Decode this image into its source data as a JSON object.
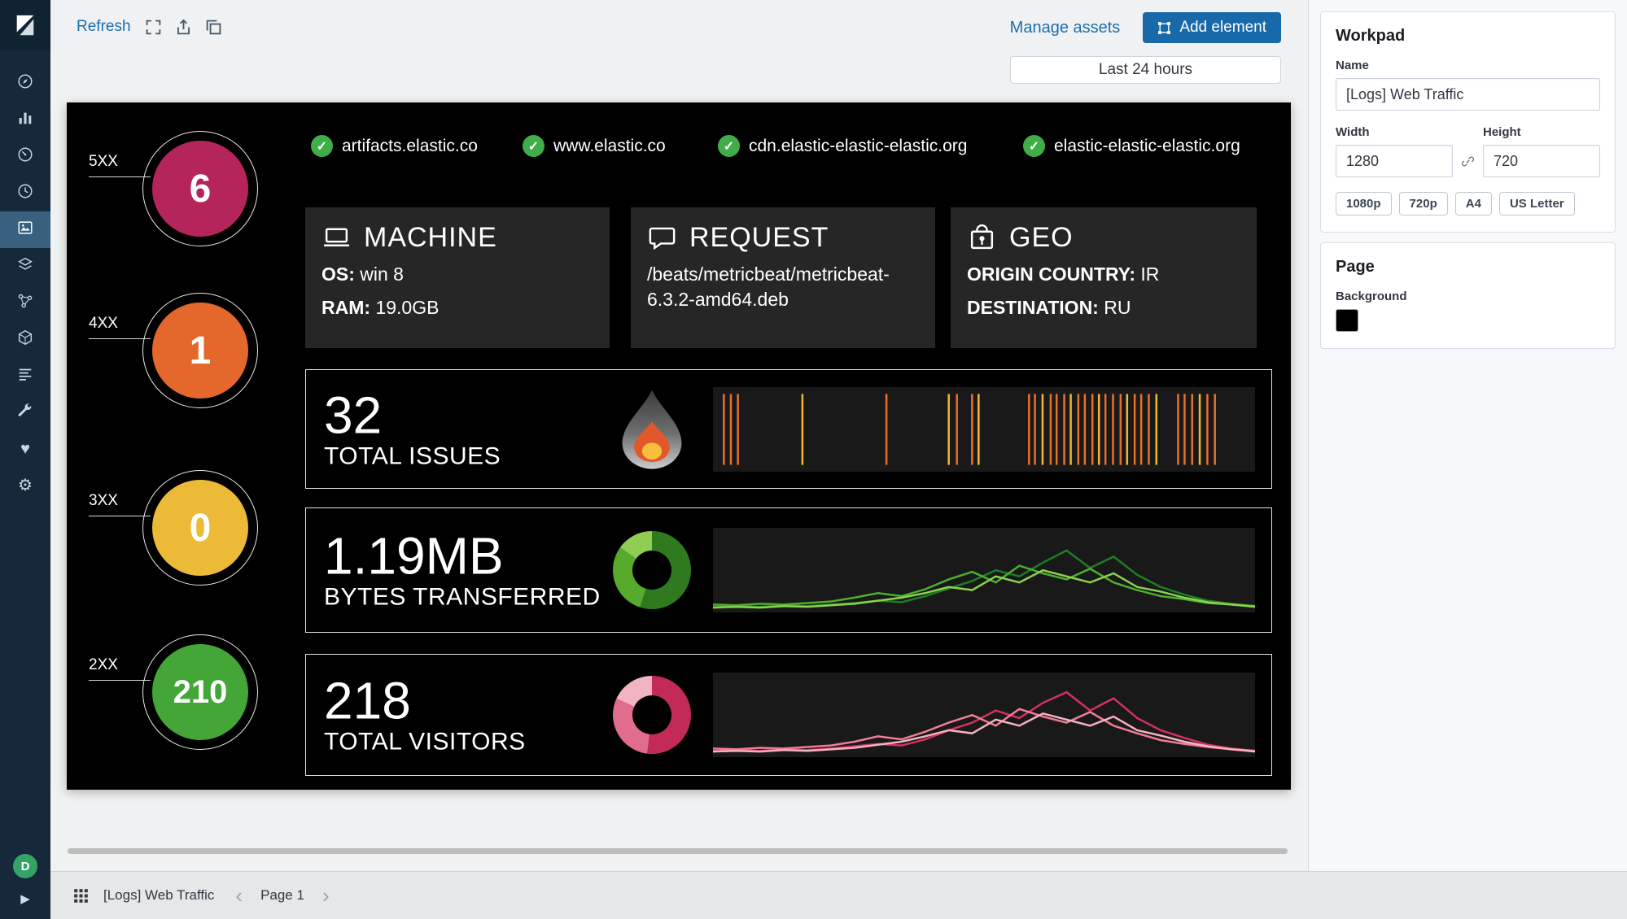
{
  "app": {
    "name": "Kibana Canvas"
  },
  "sidebar": {
    "items": [
      {
        "id": "discover",
        "icon": "discover"
      },
      {
        "id": "visualize",
        "icon": "visualize"
      },
      {
        "id": "dashboard",
        "icon": "dashboard"
      },
      {
        "id": "timelion",
        "icon": "timelion"
      },
      {
        "id": "canvas",
        "icon": "canvas",
        "selected": true
      },
      {
        "id": "maps",
        "icon": "maps"
      },
      {
        "id": "machine-learning",
        "icon": "ml"
      },
      {
        "id": "infrastructure",
        "icon": "infrastructure"
      },
      {
        "id": "logs",
        "icon": "logs"
      },
      {
        "id": "dev-tools",
        "icon": "wrench"
      },
      {
        "id": "monitoring",
        "icon": "heart"
      },
      {
        "id": "management",
        "icon": "gear"
      }
    ],
    "space_badge": "D"
  },
  "toolbar": {
    "refresh_label": "Refresh",
    "icons": [
      {
        "id": "fullscreen"
      },
      {
        "id": "share"
      },
      {
        "id": "clone"
      }
    ],
    "manage_assets_label": "Manage assets",
    "add_element_label": "Add element"
  },
  "timepicker": {
    "label": "Last 24 hours"
  },
  "canvas": {
    "status_codes": [
      {
        "label": "5XX",
        "value": "6",
        "color": "#b5245a"
      },
      {
        "label": "4XX",
        "value": "1",
        "color": "#e4682c"
      },
      {
        "label": "3XX",
        "value": "0",
        "color": "#ecba37"
      },
      {
        "label": "2XX",
        "value": "210",
        "color": "#43a637"
      }
    ],
    "domains": [
      "artifacts.elastic.co",
      "www.elastic.co",
      "cdn.elastic-elastic-elastic.org",
      "elastic-elastic-elastic.org"
    ],
    "cards": [
      {
        "icon": "machine",
        "title": "MACHINE",
        "lines": [
          {
            "label": "OS:",
            "value": " win 8"
          },
          {
            "label": "RAM:",
            "value": " 19.0GB"
          }
        ]
      },
      {
        "icon": "request",
        "title": "REQUEST",
        "lines": [
          {
            "label": "",
            "value": "/beats/metricbeat/metricbeat-6.3.2-amd64.deb"
          }
        ]
      },
      {
        "icon": "geo",
        "title": "GEO",
        "lines": [
          {
            "label": "ORIGIN COUNTRY:",
            "value": " IR"
          },
          {
            "label": "DESTINATION:",
            "value": " RU"
          }
        ]
      }
    ],
    "metrics": [
      {
        "value": "32",
        "label": "TOTAL ISSUES",
        "viz": "flame",
        "chart": 0
      },
      {
        "value": "1.19MB",
        "label": "BYTES TRANSFERRED",
        "viz": "donut",
        "chart": 1
      },
      {
        "value": "218",
        "label": "TOTAL VISITORS",
        "viz": "donut",
        "chart": 2
      }
    ]
  },
  "chart_data": [
    {
      "type": "event-ticks",
      "title": "32 TOTAL ISSUES",
      "colors": {
        "o": "#e8702a",
        "y": "#f2b834"
      },
      "ticks": [
        [
          2,
          "o"
        ],
        [
          3.3,
          "o"
        ],
        [
          4.6,
          "o"
        ],
        [
          16.5,
          "y"
        ],
        [
          32,
          "o"
        ],
        [
          43.5,
          "y"
        ],
        [
          45,
          "o"
        ],
        [
          47.8,
          "o"
        ],
        [
          49,
          "y"
        ],
        [
          58.3,
          "o"
        ],
        [
          59.4,
          "o"
        ],
        [
          60.8,
          "y"
        ],
        [
          62.3,
          "o"
        ],
        [
          63.4,
          "o"
        ],
        [
          64.8,
          "o"
        ],
        [
          66,
          "y"
        ],
        [
          67.4,
          "o"
        ],
        [
          68.6,
          "o"
        ],
        [
          70,
          "o"
        ],
        [
          71.2,
          "y"
        ],
        [
          72.4,
          "o"
        ],
        [
          73.8,
          "o"
        ],
        [
          75.2,
          "o"
        ],
        [
          76.4,
          "y"
        ],
        [
          77.8,
          "o"
        ],
        [
          79,
          "o"
        ],
        [
          80.4,
          "o"
        ],
        [
          81.8,
          "y"
        ],
        [
          85.8,
          "o"
        ],
        [
          87,
          "o"
        ],
        [
          88.4,
          "o"
        ],
        [
          89.8,
          "y"
        ],
        [
          91.2,
          "o"
        ],
        [
          92.6,
          "o"
        ]
      ]
    },
    {
      "type": "line",
      "title": "1.19MB BYTES TRANSFERRED",
      "donut_segments": [
        [
          "#2f7a1f",
          55
        ],
        [
          "#57aa2c",
          30
        ],
        [
          "#8fce53",
          15
        ]
      ],
      "series": [
        {
          "color": "#1e7e23",
          "y": [
            4,
            5,
            4,
            6,
            5,
            7,
            9,
            12,
            10,
            18,
            28,
            38,
            52,
            44,
            62,
            78,
            55,
            70,
            46,
            30,
            20,
            12,
            8,
            5
          ]
        },
        {
          "color": "#4caf2f",
          "y": [
            7,
            6,
            8,
            7,
            9,
            11,
            16,
            22,
            18,
            27,
            40,
            50,
            36,
            58,
            48,
            40,
            54,
            36,
            26,
            18,
            14,
            9,
            7,
            5
          ]
        },
        {
          "color": "#8bd14f",
          "y": [
            3,
            4,
            3,
            5,
            4,
            6,
            8,
            12,
            16,
            22,
            30,
            26,
            44,
            36,
            52,
            44,
            36,
            48,
            30,
            24,
            16,
            10,
            7,
            4
          ]
        }
      ]
    },
    {
      "type": "line",
      "title": "218 TOTAL VISITORS",
      "donut_segments": [
        [
          "#c22a57",
          52
        ],
        [
          "#e06d8d",
          30
        ],
        [
          "#f2b3c2",
          18
        ]
      ],
      "series": [
        {
          "color": "#d3315f",
          "y": [
            5,
            6,
            5,
            7,
            6,
            8,
            11,
            14,
            12,
            20,
            32,
            42,
            58,
            48,
            68,
            82,
            58,
            74,
            48,
            32,
            22,
            13,
            8,
            5
          ]
        },
        {
          "color": "#ef7d95",
          "y": [
            8,
            7,
            9,
            8,
            10,
            12,
            17,
            24,
            20,
            30,
            42,
            52,
            38,
            60,
            50,
            42,
            56,
            38,
            28,
            19,
            14,
            10,
            7,
            5
          ]
        },
        {
          "color": "#f5b1c0",
          "y": [
            4,
            5,
            4,
            6,
            5,
            7,
            9,
            13,
            17,
            24,
            32,
            28,
            46,
            38,
            54,
            46,
            38,
            50,
            32,
            25,
            17,
            11,
            7,
            4
          ]
        }
      ]
    }
  ],
  "panel": {
    "workpad": {
      "title": "Workpad",
      "name_label": "Name",
      "name_value": "[Logs] Web Traffic",
      "width_label": "Width",
      "width_value": "1280",
      "height_label": "Height",
      "height_value": "720",
      "presets": [
        "1080p",
        "720p",
        "A4",
        "US Letter"
      ]
    },
    "page": {
      "title": "Page",
      "background_label": "Background",
      "background_value": "#000000"
    }
  },
  "footer": {
    "workpad_name": "[Logs] Web Traffic",
    "page_label": "Page 1"
  }
}
